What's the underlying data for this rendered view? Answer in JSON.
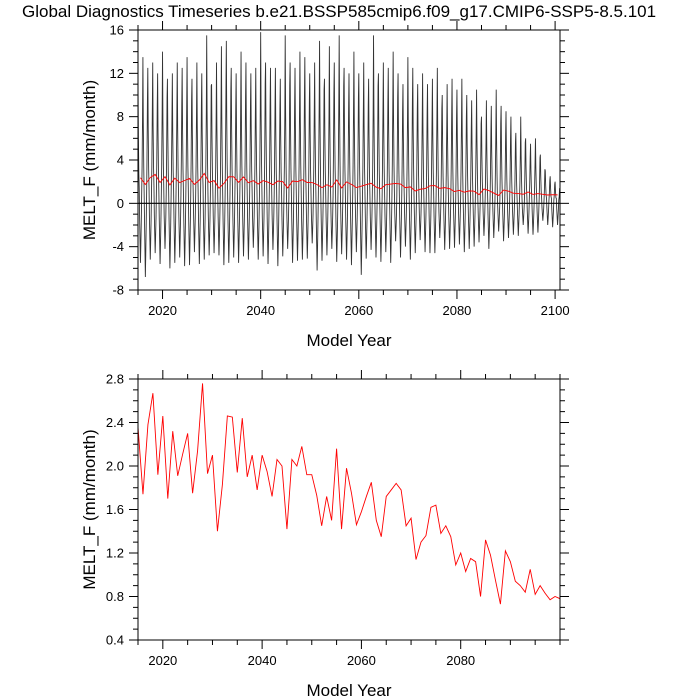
{
  "title": "Global Diagnostics Timeseries b.e21.BSSP585cmip6.f09_g17.CMIP6-SSP5-8.5.101",
  "colors": {
    "monthly": "#333333",
    "annual": "#ff0000",
    "zero_line": "#000000",
    "axis": "#000000"
  },
  "chart_data": [
    {
      "type": "line",
      "panel": "top",
      "xlabel": "Model Year",
      "ylabel": "MELT_F (mm/month)",
      "xlim": [
        2015,
        2101
      ],
      "ylim": [
        -8,
        16
      ],
      "x_ticks": [
        2020,
        2040,
        2060,
        2080,
        2100
      ],
      "x_tick_labels": [
        "2020",
        "2040",
        "2060",
        "2080",
        "2100"
      ],
      "y_ticks": [
        -8,
        -4,
        0,
        4,
        8,
        12,
        16
      ],
      "y_tick_labels": [
        "-8",
        "-4",
        "0",
        "4",
        "8",
        "12",
        "16"
      ],
      "reference_line": 0,
      "series": [
        {
          "role": "monthly",
          "x_start": 2015,
          "period_years": 1,
          "summer_peak_min": [
            -5.5,
            -6.8,
            -5.2,
            -4.6,
            -5.6,
            -4.2,
            -6.0,
            -5.5,
            -5.0,
            -5.8,
            -5.7,
            -4.5,
            -5.6,
            -5.2,
            -4.8,
            -4.6,
            -4.8,
            -5.7,
            -5.5,
            -5.0,
            -5.5,
            -4.9,
            -5.2,
            -4.1,
            -5.2,
            -4.9,
            -5.6,
            -4.3,
            -5.8,
            -4.9,
            -4.2,
            -5.5,
            -5.3,
            -5.2,
            -5.1,
            -3.7,
            -6.2,
            -5.3,
            -4.8,
            -4.2,
            -5.4,
            -4.7,
            -5.2,
            -5.7,
            -4.5,
            -6.6,
            -5.1,
            -4.3,
            -5.0,
            -5.4,
            -4.5,
            -5.5,
            -3.5,
            -5.0,
            -4.0,
            -5.2,
            -4.6,
            -3.4,
            -4.5,
            -4.6,
            -4.6,
            -3.2,
            -4.3,
            -4.2,
            -4.1,
            -3.8,
            -4.5,
            -4.2,
            -4.0,
            -3.6,
            -3.0,
            -4.2,
            -3.2,
            -2.6,
            -3.5,
            -3.2,
            -2.9,
            -3.0,
            -2.0,
            -2.8,
            -2.9,
            -2.7,
            -1.6,
            -2.0,
            -2.2,
            -2.0
          ],
          "winter_peak_max": [
            11.0,
            13.5,
            12.5,
            13.0,
            12.0,
            14.0,
            11.5,
            12.0,
            13.0,
            12.5,
            13.5,
            11.5,
            13.0,
            12.0,
            15.5,
            11.0,
            13.0,
            14.5,
            15.0,
            12.5,
            12.0,
            14.0,
            13.0,
            12.0,
            12.5,
            15.8,
            13.0,
            12.5,
            12.5,
            11.5,
            15.5,
            13.0,
            12.5,
            14.0,
            13.5,
            12.0,
            13.0,
            15.0,
            11.5,
            14.5,
            13.0,
            15.5,
            12.5,
            12.0,
            14.0,
            12.0,
            13.0,
            11.5,
            15.5,
            12.0,
            13.0,
            12.5,
            14.0,
            12.0,
            11.0,
            13.5,
            12.5,
            11.0,
            12.0,
            11.0,
            11.5,
            12.5,
            10.0,
            11.0,
            11.5,
            10.5,
            11.5,
            10.0,
            9.5,
            10.5,
            8.0,
            9.5,
            9.0,
            10.5,
            9.0,
            8.5,
            8.0,
            6.5,
            8.0,
            6.0,
            5.5,
            6.0,
            4.5,
            3.0,
            2.5,
            2.0
          ]
        },
        {
          "role": "annual-mean",
          "x": [
            2015,
            2016,
            2017,
            2018,
            2019,
            2020,
            2021,
            2022,
            2023,
            2024,
            2025,
            2026,
            2027,
            2028,
            2029,
            2030,
            2031,
            2032,
            2033,
            2034,
            2035,
            2036,
            2037,
            2038,
            2039,
            2040,
            2041,
            2042,
            2043,
            2044,
            2045,
            2046,
            2047,
            2048,
            2049,
            2050,
            2051,
            2052,
            2053,
            2054,
            2055,
            2056,
            2057,
            2058,
            2059,
            2060,
            2061,
            2062,
            2063,
            2064,
            2065,
            2066,
            2067,
            2068,
            2069,
            2070,
            2071,
            2072,
            2073,
            2074,
            2075,
            2076,
            2077,
            2078,
            2079,
            2080,
            2081,
            2082,
            2083,
            2084,
            2085,
            2086,
            2087,
            2088,
            2089,
            2090,
            2091,
            2092,
            2093,
            2094,
            2095,
            2096,
            2097,
            2098,
            2099,
            2100
          ],
          "y": [
            2.36,
            1.74,
            2.38,
            2.67,
            1.92,
            2.46,
            1.7,
            2.32,
            1.91,
            2.11,
            2.3,
            1.75,
            2.14,
            2.76,
            1.93,
            2.1,
            1.4,
            1.83,
            2.46,
            2.45,
            1.94,
            2.44,
            1.9,
            2.1,
            1.78,
            2.1,
            1.95,
            1.72,
            2.06,
            2.0,
            1.42,
            2.06,
            2.0,
            2.18,
            1.92,
            1.92,
            1.73,
            1.45,
            1.72,
            1.5,
            2.16,
            1.42,
            1.98,
            1.75,
            1.46,
            1.58,
            1.72,
            1.85,
            1.5,
            1.35,
            1.72,
            1.78,
            1.84,
            1.78,
            1.45,
            1.52,
            1.14,
            1.3,
            1.36,
            1.62,
            1.64,
            1.38,
            1.45,
            1.35,
            1.09,
            1.2,
            1.03,
            1.15,
            1.12,
            0.8,
            1.32,
            1.18,
            0.95,
            0.73,
            1.22,
            1.12,
            0.94,
            0.9,
            0.84,
            1.05,
            0.82,
            0.9,
            0.83,
            0.77,
            0.8,
            0.78
          ]
        }
      ]
    },
    {
      "type": "line",
      "panel": "bottom",
      "xlabel": "Model Year",
      "ylabel": "MELT_F (mm/month)",
      "xlim": [
        2015,
        2100
      ],
      "ylim": [
        0.4,
        2.8
      ],
      "x_ticks": [
        2020,
        2040,
        2060,
        2080
      ],
      "x_tick_labels": [
        "2020",
        "2040",
        "2060",
        "2080"
      ],
      "y_ticks": [
        0.4,
        0.8,
        1.2,
        1.6,
        2.0,
        2.4,
        2.8
      ],
      "y_tick_labels": [
        "0.4",
        "0.8",
        "1.2",
        "1.6",
        "2.0",
        "2.4",
        "2.8"
      ],
      "series_ref": "annual-mean"
    }
  ]
}
